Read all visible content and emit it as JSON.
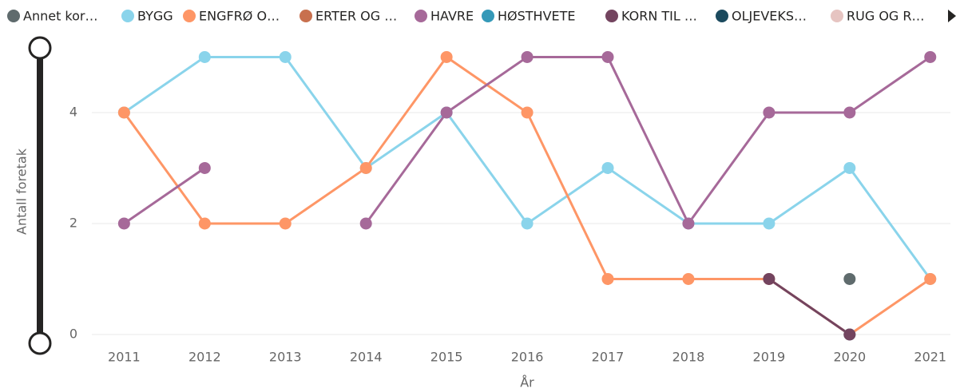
{
  "chart_data": {
    "type": "line",
    "x": [
      2011,
      2012,
      2013,
      2014,
      2015,
      2016,
      2017,
      2018,
      2019,
      2020,
      2021
    ],
    "xlim": [
      2010.6,
      2021.25
    ],
    "xticks": [
      2011,
      2012,
      2013,
      2014,
      2015,
      2016,
      2017,
      2018,
      2019,
      2020,
      2021
    ],
    "ylim": [
      0,
      5.3
    ],
    "yticks": [
      0,
      2,
      4
    ],
    "grid": true,
    "x_label": "År",
    "y_label": "Antall foretak",
    "series": [
      {
        "name": "Annet kor…",
        "color": "#5F6B6D",
        "values": [
          null,
          null,
          null,
          null,
          null,
          null,
          null,
          null,
          null,
          1,
          null
        ]
      },
      {
        "name": "BYGG",
        "color": "#8AD4EB",
        "values": [
          4,
          5,
          5,
          3,
          4,
          2,
          3,
          2,
          2,
          3,
          1
        ]
      },
      {
        "name": "ENGFRØ O…",
        "color": "#FE9666",
        "values": [
          4,
          2,
          2,
          3,
          5,
          4,
          1,
          1,
          1,
          0,
          1
        ]
      },
      {
        "name": "ERTER OG …",
        "color": "#C8704E",
        "values": [
          null,
          null,
          null,
          null,
          null,
          null,
          null,
          null,
          null,
          null,
          null
        ]
      },
      {
        "name": "HAVRE",
        "color": "#A66999",
        "values": [
          2,
          3,
          null,
          2,
          4,
          5,
          5,
          2,
          4,
          4,
          5
        ]
      },
      {
        "name": "HØSTHVETE",
        "color": "#3599B8",
        "values": [
          null,
          null,
          null,
          null,
          null,
          null,
          null,
          null,
          null,
          0,
          null
        ]
      },
      {
        "name": "KORN TIL …",
        "color": "#73445F",
        "values": [
          null,
          null,
          null,
          null,
          null,
          null,
          null,
          null,
          1,
          0,
          null
        ]
      },
      {
        "name": "OLJEVEKS…",
        "color": "#1B4A5E",
        "values": [
          null,
          null,
          null,
          null,
          null,
          null,
          null,
          null,
          null,
          null,
          null
        ]
      },
      {
        "name": "RUG OG R…",
        "color": "#E6C4C1",
        "values": [
          null,
          null,
          null,
          null,
          null,
          null,
          null,
          null,
          null,
          null,
          null
        ]
      }
    ]
  }
}
